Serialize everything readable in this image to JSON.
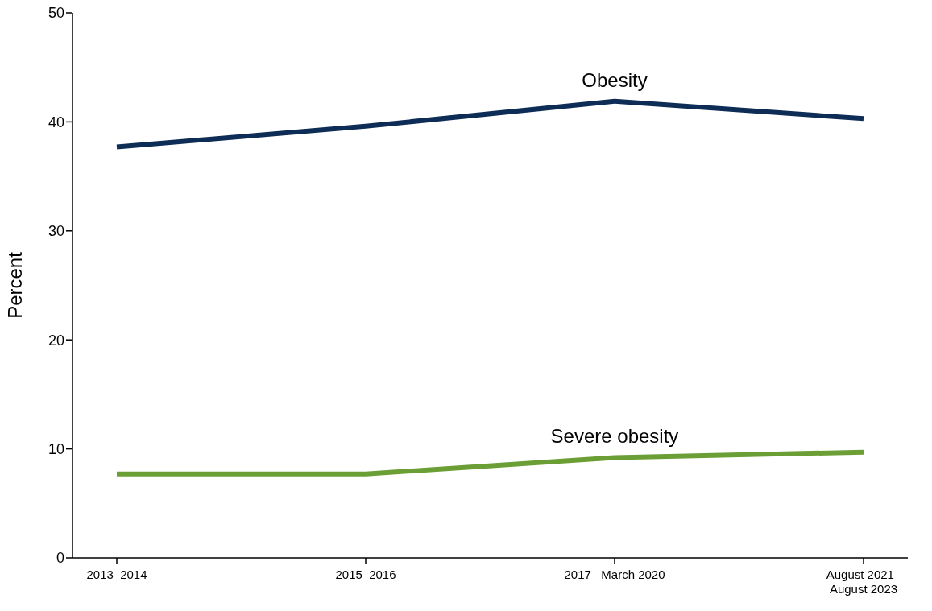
{
  "chart_data": {
    "type": "line",
    "ylabel": "Percent",
    "categories": [
      "2013–2014",
      "2015–2016",
      "2017– March 2020",
      "August 2021–\nAugust 2023"
    ],
    "ylim": [
      0,
      50
    ],
    "yticks": [
      0,
      10,
      20,
      30,
      40,
      50
    ],
    "grid": false,
    "legend": false,
    "marker": "none",
    "line_style": "solid",
    "series": [
      {
        "name": "Obesity",
        "color": "#0d2d57",
        "values": [
          37.7,
          39.6,
          41.9,
          40.3
        ]
      },
      {
        "name": "Severe obesity",
        "color": "#6b9f35",
        "values": [
          7.7,
          7.7,
          9.2,
          9.7
        ]
      }
    ]
  }
}
